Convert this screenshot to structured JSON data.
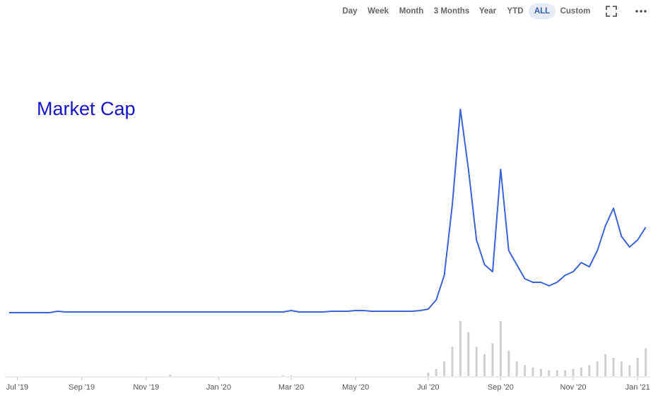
{
  "toolbar": {
    "buttons": [
      "Day",
      "Week",
      "Month",
      "3 Months",
      "Year",
      "YTD",
      "ALL",
      "Custom"
    ],
    "selected_index": 6
  },
  "chart_data": {
    "type": "line",
    "title": "Market Cap",
    "categories": [
      null,
      "Jul '19",
      null,
      null,
      null,
      null,
      null,
      null,
      null,
      "Sep '19",
      null,
      null,
      null,
      null,
      null,
      null,
      null,
      "Nov '19",
      null,
      null,
      null,
      null,
      null,
      null,
      null,
      null,
      "Jan '20",
      null,
      null,
      null,
      null,
      null,
      null,
      null,
      null,
      "Mar '20",
      null,
      null,
      null,
      null,
      null,
      null,
      null,
      "May '20",
      null,
      null,
      null,
      null,
      null,
      null,
      null,
      null,
      "Jul '20",
      null,
      null,
      null,
      null,
      null,
      null,
      null,
      null,
      "Sep '20",
      null,
      null,
      null,
      null,
      null,
      null,
      null,
      null,
      "Nov '20",
      null,
      null,
      null,
      null,
      null,
      null,
      null,
      "Jan '21",
      null
    ],
    "series": [
      {
        "color": "#3a62d9",
        "values": [
          7,
          7,
          7,
          7,
          7,
          7,
          9,
          8,
          8,
          8,
          8,
          8,
          8,
          8,
          8,
          8,
          8,
          8,
          8,
          8,
          8,
          8,
          8,
          8,
          8,
          8,
          8,
          8,
          8,
          8,
          8,
          8,
          8,
          8,
          8,
          10,
          8,
          8,
          8,
          8,
          9,
          9,
          9,
          10,
          10,
          9,
          9,
          9,
          9,
          9,
          9,
          10,
          12,
          25,
          60,
          160,
          295,
          210,
          110,
          75,
          65,
          210,
          95,
          75,
          55,
          50,
          50,
          45,
          50,
          60,
          65,
          78,
          72,
          95,
          130,
          155,
          115,
          100,
          110,
          128
        ]
      },
      {
        "type": "bar",
        "color": "#cfcfcf",
        "values": [
          0,
          0,
          0,
          0,
          0,
          0,
          0,
          0,
          0,
          0,
          0,
          0,
          0,
          0,
          0,
          0,
          0,
          0,
          0,
          0,
          2,
          0,
          0,
          0,
          0,
          0,
          0,
          0,
          0,
          0,
          0,
          0,
          0,
          0,
          1,
          1,
          0,
          0,
          0,
          0,
          0,
          0,
          0,
          0,
          0,
          0,
          0,
          0,
          0,
          0,
          0,
          0,
          5,
          10,
          20,
          40,
          75,
          60,
          40,
          30,
          45,
          75,
          35,
          20,
          15,
          12,
          10,
          8,
          8,
          8,
          10,
          12,
          15,
          20,
          30,
          25,
          20,
          15,
          25,
          38
        ]
      }
    ]
  }
}
